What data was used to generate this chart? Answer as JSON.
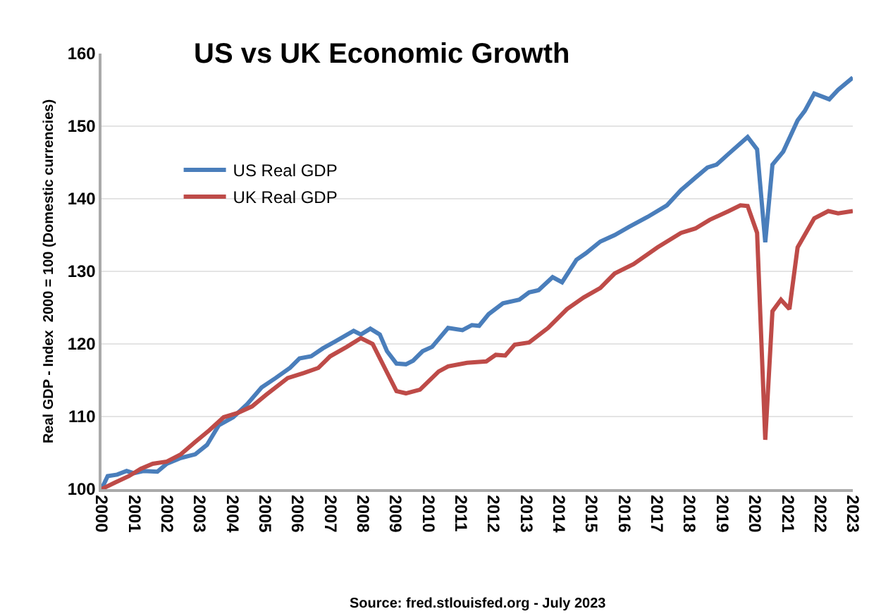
{
  "chart_data": {
    "type": "line",
    "title": "US vs UK Economic Growth",
    "ylabel": "Real GDP - Index  2000 = 100 (Domestic currencies)",
    "annotations": [
      "Source: fred.stlouisfed.org - July 2023"
    ],
    "xlim": [
      2000,
      2023
    ],
    "xticks": [
      2000,
      2001,
      2002,
      2003,
      2004,
      2005,
      2006,
      2007,
      2008,
      2009,
      2010,
      2011,
      2012,
      2013,
      2014,
      2015,
      2016,
      2017,
      2018,
      2019,
      2020,
      2021,
      2022,
      2023
    ],
    "ylim": [
      100,
      160
    ],
    "yticks": [
      100,
      110,
      120,
      130,
      140,
      150,
      160
    ],
    "grid": "y",
    "legend": "top left",
    "line_style": "solid",
    "marker": "none",
    "series": [
      {
        "name": "US Real GDP",
        "color": "#4a7ebb",
        "x": [
          2000,
          2000.19,
          2000.48,
          2000.77,
          2000.99,
          2001.28,
          2001.71,
          2002.0,
          2002.43,
          2002.87,
          2003.23,
          2003.59,
          2004.03,
          2004.46,
          2004.9,
          2005.33,
          2005.77,
          2006.06,
          2006.42,
          2006.78,
          2007.14,
          2007.72,
          2007.94,
          2008.23,
          2008.52,
          2008.74,
          2009.03,
          2009.32,
          2009.54,
          2009.83,
          2010.12,
          2010.61,
          2011.05,
          2011.34,
          2011.56,
          2011.85,
          2012.29,
          2012.79,
          2013.09,
          2013.38,
          2013.81,
          2014.1,
          2014.54,
          2014.83,
          2015.27,
          2015.71,
          2016.14,
          2016.72,
          2017.31,
          2017.74,
          2018.18,
          2018.55,
          2018.83,
          2019.2,
          2019.78,
          2020.07,
          2020.32,
          2020.54,
          2020.87,
          2021.31,
          2021.53,
          2021.82,
          2022.28,
          2022.55,
          2023.0
        ],
        "values": [
          100,
          101.8,
          102.0,
          102.5,
          102.2,
          102.5,
          102.4,
          103.5,
          104.3,
          104.8,
          106.1,
          108.8,
          109.9,
          111.7,
          114.0,
          115.3,
          116.7,
          118.0,
          118.3,
          119.4,
          120.3,
          121.8,
          121.3,
          122.1,
          121.3,
          119.0,
          117.3,
          117.2,
          117.7,
          119.0,
          119.6,
          122.2,
          121.9,
          122.6,
          122.5,
          124.1,
          125.6,
          126.1,
          127.1,
          127.4,
          129.2,
          128.5,
          131.6,
          132.5,
          134.1,
          135.0,
          136.1,
          137.5,
          139.1,
          141.2,
          142.9,
          144.3,
          144.7,
          146.2,
          148.5,
          146.8,
          134.0,
          144.7,
          146.5,
          150.8,
          152.1,
          154.5,
          153.7,
          155.0,
          156.7
        ]
      },
      {
        "name": "UK Real GDP",
        "color": "#be4b48",
        "x": [
          2000,
          2000.41,
          2000.84,
          2001.2,
          2001.57,
          2002.0,
          2002.43,
          2002.87,
          2003.3,
          2003.74,
          2004.17,
          2004.61,
          2005.04,
          2005.7,
          2006.2,
          2006.64,
          2007.0,
          2007.51,
          2007.94,
          2008.3,
          2008.67,
          2009.03,
          2009.32,
          2009.75,
          2010.32,
          2010.61,
          2011.19,
          2011.78,
          2012.07,
          2012.36,
          2012.65,
          2013.09,
          2013.67,
          2014.25,
          2014.76,
          2015.27,
          2015.71,
          2016.29,
          2017.02,
          2017.74,
          2018.18,
          2018.62,
          2019.2,
          2019.56,
          2019.78,
          2020.07,
          2020.32,
          2020.54,
          2020.8,
          2021.06,
          2021.31,
          2021.82,
          2022.25,
          2022.55,
          2023.0
        ],
        "values": [
          100,
          100.9,
          101.8,
          102.8,
          103.5,
          103.8,
          104.8,
          106.5,
          108.1,
          109.9,
          110.5,
          111.4,
          113.0,
          115.3,
          116.0,
          116.7,
          118.3,
          119.6,
          120.8,
          120.0,
          116.7,
          113.5,
          113.2,
          113.7,
          116.2,
          116.9,
          117.4,
          117.6,
          118.5,
          118.4,
          119.9,
          120.2,
          122.2,
          124.8,
          126.4,
          127.7,
          129.7,
          131.0,
          133.3,
          135.3,
          135.9,
          137.1,
          138.3,
          139.1,
          139.0,
          135.3,
          106.8,
          124.5,
          126.1,
          124.8,
          133.3,
          137.3,
          138.3,
          138.0,
          138.3
        ]
      }
    ]
  }
}
